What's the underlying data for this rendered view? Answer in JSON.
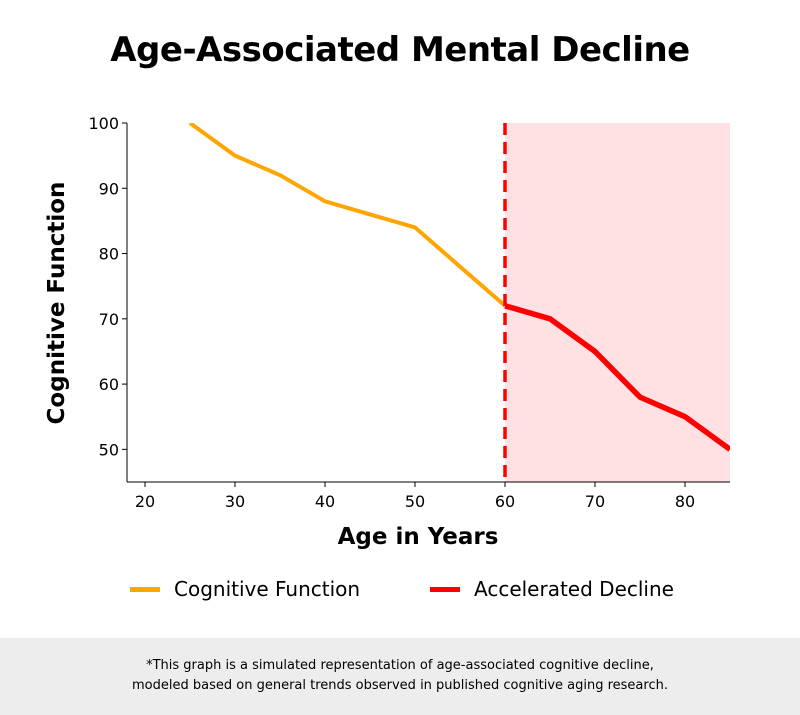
{
  "chart_data": {
    "type": "line",
    "title": "Age-Associated Mental Decline",
    "xlabel": "Age in Years",
    "ylabel": "Cognitive Function",
    "xlim": [
      18,
      85
    ],
    "ylim": [
      45,
      100
    ],
    "xticks": [
      20,
      30,
      40,
      50,
      60,
      70,
      80
    ],
    "yticks": [
      50,
      60,
      70,
      80,
      90,
      100
    ],
    "grid": false,
    "legend_position": "bottom",
    "series": [
      {
        "name": "Cognitive Function",
        "color": "#FFA500",
        "x": [
          25,
          30,
          35,
          40,
          45,
          50,
          55,
          60
        ],
        "y": [
          100,
          95,
          92,
          88,
          86,
          84,
          78,
          72
        ]
      },
      {
        "name": "Accelerated Decline",
        "color": "#FF0000",
        "x": [
          60,
          65,
          70,
          75,
          80,
          85
        ],
        "y": [
          72,
          70,
          65,
          58,
          55,
          50
        ]
      }
    ],
    "threshold": {
      "x": 60,
      "style": "dashed",
      "color": "#FF0000"
    },
    "shaded_region": {
      "x": [
        60,
        85
      ],
      "color": "#FFE0E3"
    }
  },
  "footer": {
    "line1": "*This graph is a simulated representation of age-associated cognitive decline,",
    "line2": "modeled based on general trends observed in published cognitive aging research."
  }
}
